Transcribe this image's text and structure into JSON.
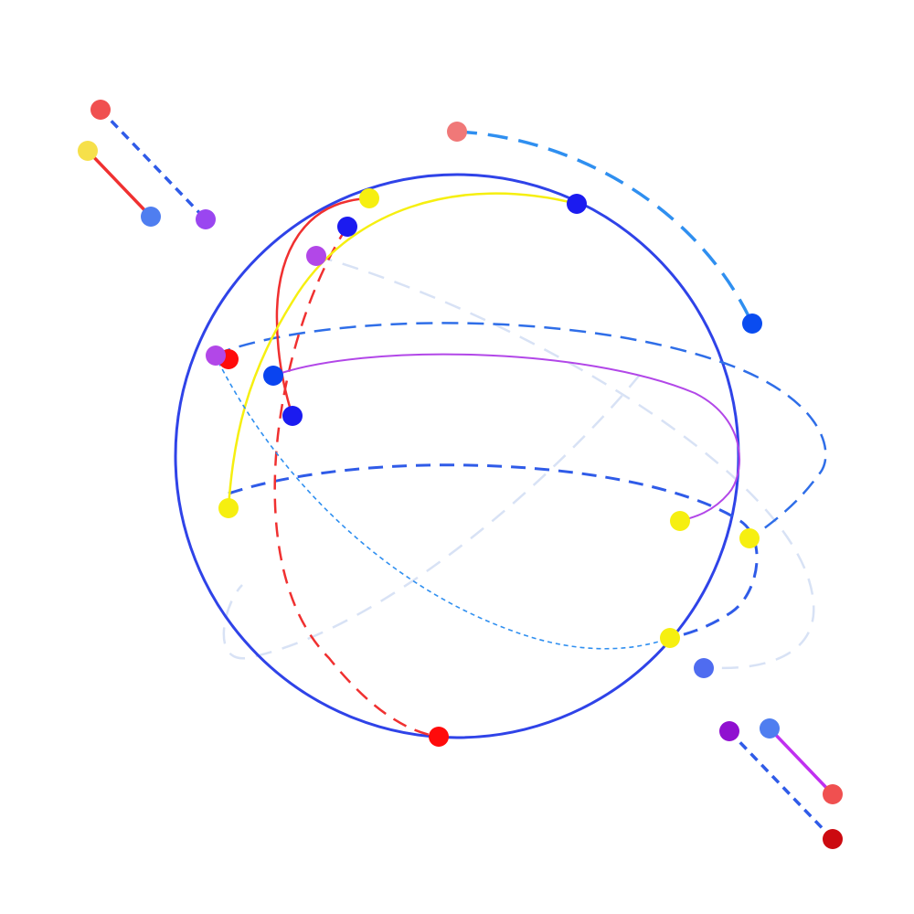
{
  "diagram": {
    "kind": "sphere-with-arcs",
    "background": "#ffffff",
    "sphere_color": "#2f43e8",
    "colors": {
      "red": "#ff0b0b",
      "salmon": "#f06060",
      "yellow": "#f6ef10",
      "blue": "#1b3df0",
      "royal": "#0a2cf0",
      "sky": "#2f8ff0",
      "purple": "#b247e8",
      "violet": "#9a46f0",
      "pale": "#d8e2f5",
      "dark_red": "#cc0a10"
    },
    "node_count": 22,
    "edge_count": 14
  }
}
